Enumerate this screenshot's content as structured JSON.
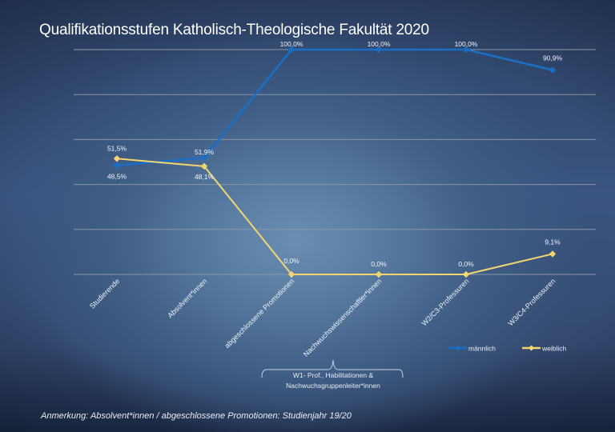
{
  "title": "Qualifikationsstufen Katholisch-Theologische Fakultät 2020",
  "note": "Anmerkung: Absolvent*innen / abgeschlossene Promotionen: Studienjahr 19/20",
  "bracket": {
    "label_line1": "W1- Prof., Habilitationen &",
    "label_line2": "Nachwuchsgruppenleiter*innen"
  },
  "colors": {
    "maennlich": "#1a6fc4",
    "weiblich": "#f3d572",
    "gridline": "#8a97a8",
    "text": "#ffffff"
  },
  "chart_data": {
    "type": "line",
    "title": "Qualifikationsstufen Katholisch-Theologische Fakultät 2020",
    "xlabel": "",
    "ylabel": "",
    "ylim": [
      0,
      100
    ],
    "grid": true,
    "legend_position": "bottom-right",
    "categories": [
      "Studierende",
      "Absolvent*innen",
      "abgeschlossene Promotionen",
      "Nachwuchswissenschaftler*innen",
      "W2/C3-Professuren",
      "W3/C4-Professuren"
    ],
    "series": [
      {
        "name": "männlich",
        "color": "#1a6fc4",
        "marker": "diamond",
        "values": [
          48.5,
          51.9,
          100.0,
          100.0,
          100.0,
          90.9
        ],
        "labels": [
          "48,5%",
          "51,9%",
          "100,0%",
          "100,0%",
          "100,0%",
          "90,9%"
        ]
      },
      {
        "name": "weiblich",
        "color": "#f3d572",
        "marker": "diamond",
        "values": [
          51.5,
          48.1,
          0.0,
          0.0,
          0.0,
          9.1
        ],
        "labels": [
          "51,5%",
          "48,1%",
          "0,0%",
          "0,0%",
          "0,0%",
          "9,1%"
        ]
      }
    ],
    "annotations": [
      "W1- Prof., Habilitationen & Nachwuchsgruppenleiter*innen (bracket under Nachwuchswissenschaftler*innen)"
    ]
  }
}
